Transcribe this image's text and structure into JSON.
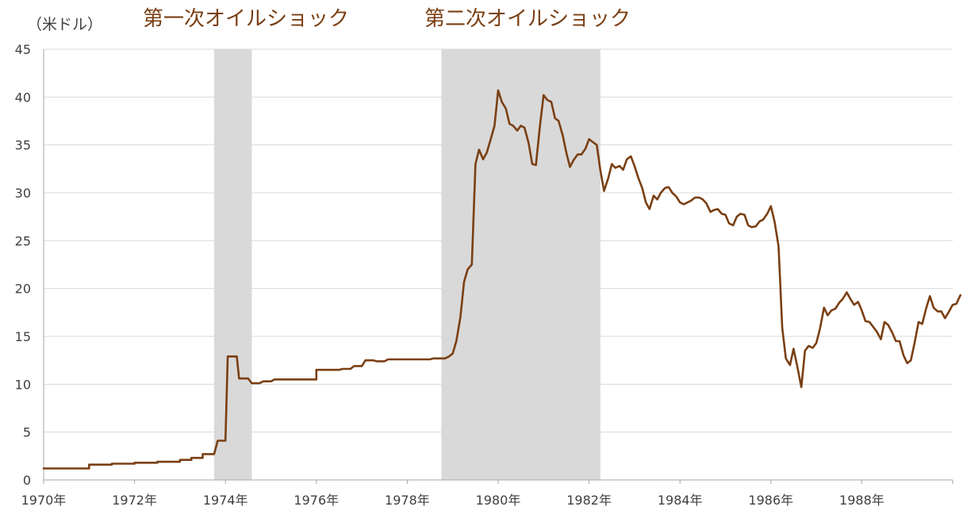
{
  "chart_data": {
    "type": "line",
    "title": "",
    "ylabel": "（米ドル）",
    "xlabel": "",
    "ylim": [
      0,
      45
    ],
    "yticks": [
      "0",
      "5",
      "10",
      "15",
      "20",
      "25",
      "30",
      "35",
      "40",
      "45"
    ],
    "xlim": [
      1970.0,
      1990.0
    ],
    "xticks": [
      "1970年",
      "1972年",
      "1974年",
      "1976年",
      "1978年",
      "1980年",
      "1982年",
      "1984年",
      "1986年",
      "1988年"
    ],
    "grid": true,
    "shaded_periods": [
      {
        "label": "第一次オイルショック",
        "start": 1973.75,
        "end": 1974.58
      },
      {
        "label": "第二次オイルショック",
        "start": 1978.75,
        "end": 1982.25
      }
    ],
    "series": [
      {
        "name": "",
        "color": "#7a3f13",
        "points": [
          [
            1970.0,
            1.2
          ],
          [
            1971.0,
            1.2
          ],
          [
            1971.0,
            1.6
          ],
          [
            1971.5,
            1.6
          ],
          [
            1971.5,
            1.7
          ],
          [
            1972.0,
            1.7
          ],
          [
            1972.0,
            1.8
          ],
          [
            1972.5,
            1.8
          ],
          [
            1972.5,
            1.9
          ],
          [
            1973.0,
            1.9
          ],
          [
            1973.0,
            2.1
          ],
          [
            1973.25,
            2.1
          ],
          [
            1973.25,
            2.3
          ],
          [
            1973.5,
            2.3
          ],
          [
            1973.5,
            2.7
          ],
          [
            1973.75,
            2.7
          ],
          [
            1973.83,
            4.1
          ],
          [
            1974.0,
            4.1
          ],
          [
            1974.05,
            12.9
          ],
          [
            1974.25,
            12.9
          ],
          [
            1974.3,
            10.6
          ],
          [
            1974.5,
            10.6
          ],
          [
            1974.58,
            10.1
          ],
          [
            1974.75,
            10.1
          ],
          [
            1974.83,
            10.3
          ],
          [
            1975.0,
            10.3
          ],
          [
            1975.08,
            10.5
          ],
          [
            1976.0,
            10.5
          ],
          [
            1976.0,
            11.5
          ],
          [
            1976.5,
            11.5
          ],
          [
            1976.58,
            11.6
          ],
          [
            1976.75,
            11.6
          ],
          [
            1976.83,
            11.9
          ],
          [
            1977.0,
            11.9
          ],
          [
            1977.08,
            12.5
          ],
          [
            1977.25,
            12.5
          ],
          [
            1977.33,
            12.4
          ],
          [
            1977.5,
            12.4
          ],
          [
            1977.58,
            12.6
          ],
          [
            1978.5,
            12.6
          ],
          [
            1978.58,
            12.7
          ],
          [
            1978.83,
            12.7
          ],
          [
            1978.92,
            12.9
          ],
          [
            1979.0,
            13.2
          ],
          [
            1979.08,
            14.5
          ],
          [
            1979.17,
            17.0
          ],
          [
            1979.25,
            20.7
          ],
          [
            1979.33,
            22.0
          ],
          [
            1979.42,
            22.5
          ],
          [
            1979.5,
            33.0
          ],
          [
            1979.58,
            34.5
          ],
          [
            1979.67,
            33.5
          ],
          [
            1979.75,
            34.2
          ],
          [
            1979.83,
            35.5
          ],
          [
            1979.92,
            37.0
          ],
          [
            1980.0,
            40.7
          ],
          [
            1980.08,
            39.5
          ],
          [
            1980.17,
            38.8
          ],
          [
            1980.25,
            37.2
          ],
          [
            1980.33,
            37.0
          ],
          [
            1980.42,
            36.5
          ],
          [
            1980.5,
            37.0
          ],
          [
            1980.58,
            36.8
          ],
          [
            1980.67,
            35.2
          ],
          [
            1980.75,
            33.0
          ],
          [
            1980.83,
            32.9
          ],
          [
            1980.92,
            37.0
          ],
          [
            1981.0,
            40.2
          ],
          [
            1981.08,
            39.7
          ],
          [
            1981.17,
            39.5
          ],
          [
            1981.25,
            37.8
          ],
          [
            1981.33,
            37.5
          ],
          [
            1981.42,
            36.0
          ],
          [
            1981.5,
            34.2
          ],
          [
            1981.58,
            32.7
          ],
          [
            1981.67,
            33.5
          ],
          [
            1981.75,
            34.0
          ],
          [
            1981.83,
            34.0
          ],
          [
            1981.92,
            34.6
          ],
          [
            1982.0,
            35.6
          ],
          [
            1982.08,
            35.3
          ],
          [
            1982.17,
            35.0
          ],
          [
            1982.25,
            32.3
          ],
          [
            1982.33,
            30.2
          ],
          [
            1982.42,
            31.5
          ],
          [
            1982.5,
            33.0
          ],
          [
            1982.58,
            32.6
          ],
          [
            1982.67,
            32.8
          ],
          [
            1982.75,
            32.4
          ],
          [
            1982.83,
            33.5
          ],
          [
            1982.92,
            33.8
          ],
          [
            1983.0,
            32.8
          ],
          [
            1983.08,
            31.6
          ],
          [
            1983.17,
            30.5
          ],
          [
            1983.25,
            29.0
          ],
          [
            1983.33,
            28.3
          ],
          [
            1983.42,
            29.7
          ],
          [
            1983.5,
            29.3
          ],
          [
            1983.58,
            30.0
          ],
          [
            1983.67,
            30.5
          ],
          [
            1983.75,
            30.6
          ],
          [
            1983.83,
            30.0
          ],
          [
            1983.92,
            29.6
          ],
          [
            1984.0,
            29.0
          ],
          [
            1984.08,
            28.8
          ],
          [
            1984.17,
            29.0
          ],
          [
            1984.25,
            29.2
          ],
          [
            1984.33,
            29.5
          ],
          [
            1984.42,
            29.5
          ],
          [
            1984.5,
            29.3
          ],
          [
            1984.58,
            28.9
          ],
          [
            1984.67,
            28.0
          ],
          [
            1984.75,
            28.2
          ],
          [
            1984.83,
            28.3
          ],
          [
            1984.92,
            27.8
          ],
          [
            1985.0,
            27.7
          ],
          [
            1985.08,
            26.8
          ],
          [
            1985.17,
            26.6
          ],
          [
            1985.25,
            27.5
          ],
          [
            1985.33,
            27.8
          ],
          [
            1985.42,
            27.7
          ],
          [
            1985.5,
            26.6
          ],
          [
            1985.58,
            26.4
          ],
          [
            1985.67,
            26.5
          ],
          [
            1985.75,
            27.0
          ],
          [
            1985.83,
            27.2
          ],
          [
            1985.92,
            27.8
          ],
          [
            1986.0,
            28.6
          ],
          [
            1986.08,
            27.0
          ],
          [
            1986.17,
            24.4
          ],
          [
            1986.25,
            15.9
          ],
          [
            1986.33,
            12.7
          ],
          [
            1986.42,
            12.0
          ],
          [
            1986.5,
            13.7
          ],
          [
            1986.58,
            11.9
          ],
          [
            1986.67,
            9.7
          ],
          [
            1986.75,
            13.5
          ],
          [
            1986.83,
            14.0
          ],
          [
            1986.92,
            13.8
          ],
          [
            1987.0,
            14.3
          ],
          [
            1987.08,
            15.8
          ],
          [
            1987.17,
            18.0
          ],
          [
            1987.25,
            17.2
          ],
          [
            1987.33,
            17.7
          ],
          [
            1987.42,
            17.9
          ],
          [
            1987.5,
            18.5
          ],
          [
            1987.58,
            18.9
          ],
          [
            1987.67,
            19.6
          ],
          [
            1987.75,
            18.9
          ],
          [
            1987.83,
            18.3
          ],
          [
            1987.92,
            18.6
          ],
          [
            1988.0,
            17.7
          ],
          [
            1988.08,
            16.6
          ],
          [
            1988.17,
            16.5
          ],
          [
            1988.25,
            16.0
          ],
          [
            1988.33,
            15.5
          ],
          [
            1988.42,
            14.7
          ],
          [
            1988.5,
            16.5
          ],
          [
            1988.58,
            16.2
          ],
          [
            1988.67,
            15.4
          ],
          [
            1988.75,
            14.5
          ],
          [
            1988.83,
            14.5
          ],
          [
            1988.92,
            13.0
          ],
          [
            1989.0,
            12.2
          ],
          [
            1989.08,
            12.5
          ],
          [
            1989.17,
            14.5
          ],
          [
            1989.25,
            16.5
          ],
          [
            1989.33,
            16.3
          ],
          [
            1989.42,
            18.0
          ],
          [
            1989.5,
            19.2
          ],
          [
            1989.58,
            18.0
          ],
          [
            1989.67,
            17.6
          ],
          [
            1989.75,
            17.6
          ],
          [
            1989.83,
            16.9
          ],
          [
            1989.92,
            17.6
          ],
          [
            1990.0,
            18.3
          ],
          [
            1990.08,
            18.4
          ],
          [
            1990.17,
            19.3
          ]
        ]
      }
    ]
  }
}
